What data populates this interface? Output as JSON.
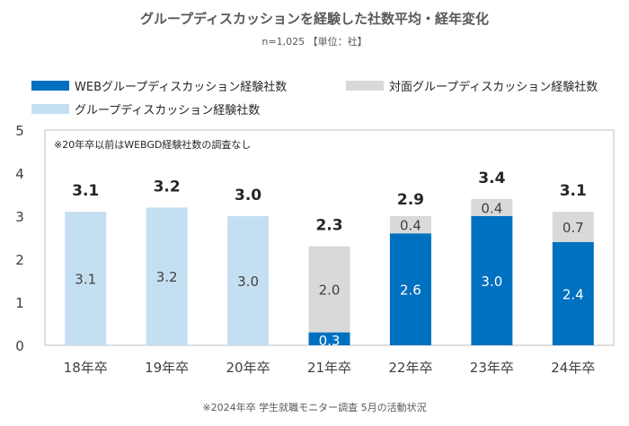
{
  "title": "グループディスカッションを経験した社数平均・経年変化",
  "subtitle": "n=1,025 【単位：社】",
  "note": "※20年卒以前はWEBGD経験社数の調査なし",
  "footnote": "※2024年卒 学生就職モニター調査 5月の活動状況",
  "colors": {
    "web": "#0070C0",
    "face": "#D9D9D9",
    "all": "#C5DFF2"
  },
  "chart_data": {
    "type": "bar",
    "stacked": true,
    "categories": [
      "18年卒",
      "19年卒",
      "20年卒",
      "21年卒",
      "22年卒",
      "23年卒",
      "24年卒"
    ],
    "series": [
      {
        "name": "グループディスカッション経験社数",
        "values": [
          3.1,
          3.2,
          3.0,
          null,
          null,
          null,
          null
        ]
      },
      {
        "name": "WEBグループディスカッション経験社数",
        "values": [
          null,
          null,
          null,
          0.3,
          2.6,
          3.0,
          2.4
        ]
      },
      {
        "name": "対面グループディスカッション経験社数",
        "values": [
          null,
          null,
          null,
          2.0,
          0.4,
          0.4,
          0.7
        ]
      }
    ],
    "totals": [
      3.1,
      3.2,
      3.0,
      2.3,
      2.9,
      3.4,
      3.1
    ],
    "segment_labels": [
      "3.1",
      "3.2",
      "3.0",
      "0.3",
      "2.6",
      "3.0",
      "2.4",
      "2.0",
      "0.4",
      "0.4",
      "0.7"
    ],
    "total_labels": [
      "3.1",
      "3.2",
      "3.0",
      "2.3",
      "2.9",
      "3.4",
      "3.1"
    ],
    "yticks": [
      "0",
      "1",
      "2",
      "3",
      "4",
      "5"
    ],
    "ylim": [
      0,
      5
    ],
    "legend": "top",
    "grid": false
  }
}
